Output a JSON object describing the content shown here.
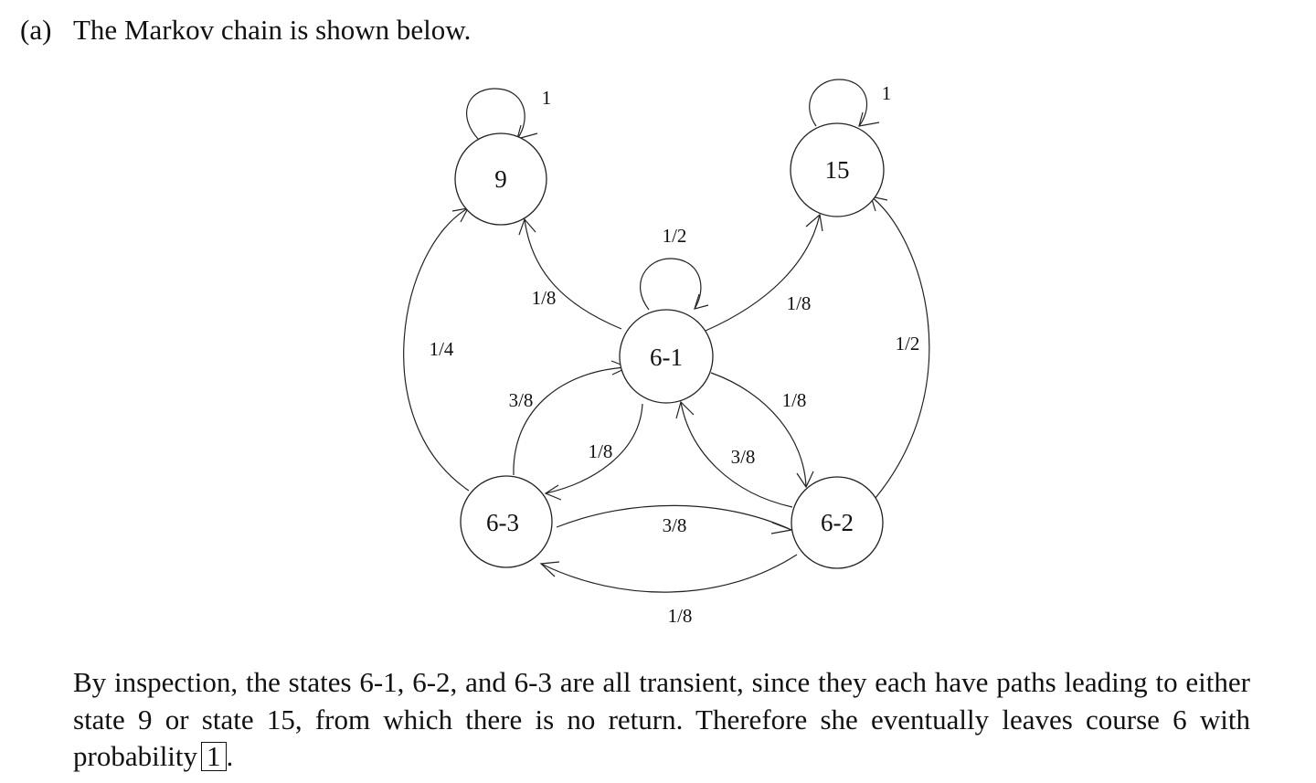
{
  "heading": {
    "part_label": "(a)",
    "text": "The Markov chain is shown below."
  },
  "diagram": {
    "states": [
      {
        "id": "9",
        "label": "9"
      },
      {
        "id": "15",
        "label": "15"
      },
      {
        "id": "6-1",
        "label": "6-1"
      },
      {
        "id": "6-2",
        "label": "6-2"
      },
      {
        "id": "6-3",
        "label": "6-3"
      }
    ],
    "transitions": [
      {
        "from": "9",
        "to": "9",
        "probability": "1"
      },
      {
        "from": "15",
        "to": "15",
        "probability": "1"
      },
      {
        "from": "6-1",
        "to": "6-1",
        "probability": "1/2"
      },
      {
        "from": "6-1",
        "to": "9",
        "probability": "1/8"
      },
      {
        "from": "6-1",
        "to": "15",
        "probability": "1/8"
      },
      {
        "from": "6-3",
        "to": "9",
        "probability": "1/4"
      },
      {
        "from": "6-2",
        "to": "15",
        "probability": "1/2"
      },
      {
        "from": "6-3",
        "to": "6-1",
        "probability": "3/8"
      },
      {
        "from": "6-1",
        "to": "6-3",
        "probability": "1/8"
      },
      {
        "from": "6-1",
        "to": "6-2",
        "probability": "1/8"
      },
      {
        "from": "6-2",
        "to": "6-1",
        "probability": "3/8"
      },
      {
        "from": "6-3",
        "to": "6-2",
        "probability": "3/8"
      },
      {
        "from": "6-2",
        "to": "6-3",
        "probability": "1/8"
      }
    ]
  },
  "paragraph": {
    "text": "By inspection, the states 6-1, 6-2, and 6-3 are all transient, since they each have paths leading to either state 9 or state 15, from which there is no return. Therefore she eventually leaves course 6 with probability",
    "boxed_answer": "1",
    "end_punctuation": "."
  }
}
